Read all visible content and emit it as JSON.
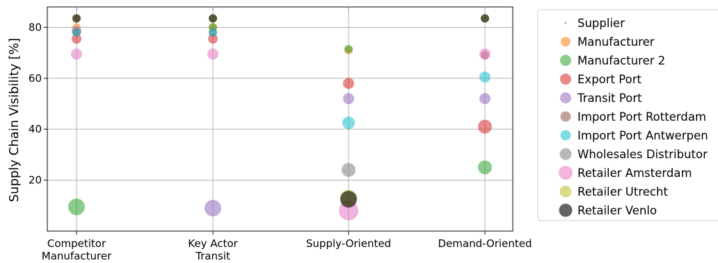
{
  "chart_data": {
    "type": "scatter",
    "title": "",
    "xlabel": "",
    "ylabel": "Supply Chain Visibility [%]",
    "categories": [
      "Competitor\nManufacturer",
      "Key Actor\nTransit",
      "Supply-Oriented",
      "Demand-Oriented"
    ],
    "ylim": [
      0,
      88
    ],
    "yticks": [
      20,
      40,
      60,
      80
    ],
    "grid": true,
    "legend": "right-outside",
    "point_size_note": "marker size varies per point",
    "series": [
      {
        "name": "Supplier",
        "color": "#1f77b4",
        "points": [
          {
            "x": 0,
            "y": 87,
            "size": 1
          },
          {
            "x": 1,
            "y": 87,
            "size": 1
          },
          {
            "x": 2,
            "y": 87,
            "size": 1
          }
        ]
      },
      {
        "name": "Manufacturer",
        "color": "#ff7f0e",
        "points": [
          {
            "x": 0,
            "y": 80,
            "size": 6
          },
          {
            "x": 1,
            "y": 80,
            "size": 6
          },
          {
            "x": 2,
            "y": 71,
            "size": 6
          }
        ]
      },
      {
        "name": "Manufacturer 2",
        "color": "#2ca02c",
        "points": [
          {
            "x": 0,
            "y": 9.5,
            "size": 12
          },
          {
            "x": 1,
            "y": 80,
            "size": 6
          },
          {
            "x": 2,
            "y": 71.5,
            "size": 6
          },
          {
            "x": 3,
            "y": 25,
            "size": 10
          }
        ]
      },
      {
        "name": "Export Port",
        "color": "#d62728",
        "points": [
          {
            "x": 0,
            "y": 75.5,
            "size": 7
          },
          {
            "x": 1,
            "y": 75.5,
            "size": 7
          },
          {
            "x": 2,
            "y": 58,
            "size": 8
          },
          {
            "x": 3,
            "y": 41,
            "size": 10
          }
        ]
      },
      {
        "name": "Transit Port",
        "color": "#9467bd",
        "points": [
          {
            "x": 0,
            "y": 78.5,
            "size": 7
          },
          {
            "x": 1,
            "y": 9,
            "size": 12
          },
          {
            "x": 2,
            "y": 52,
            "size": 8
          },
          {
            "x": 3,
            "y": 52,
            "size": 8
          }
        ]
      },
      {
        "name": "Import Port Rotterdam",
        "color": "#8c564b",
        "points": [
          {
            "x": 0,
            "y": 78,
            "size": 6
          },
          {
            "x": 1,
            "y": 78,
            "size": 6
          },
          {
            "x": 3,
            "y": 69,
            "size": 6
          }
        ]
      },
      {
        "name": "Import Port Antwerpen",
        "color": "#17becf",
        "points": [
          {
            "x": 0,
            "y": 78,
            "size": 6
          },
          {
            "x": 1,
            "y": 78,
            "size": 6
          },
          {
            "x": 2,
            "y": 42.5,
            "size": 9
          },
          {
            "x": 3,
            "y": 60.5,
            "size": 8
          }
        ]
      },
      {
        "name": "Wholesales Distributor",
        "color": "#7f7f7f",
        "points": [
          {
            "x": 2,
            "y": 24,
            "size": 10
          }
        ]
      },
      {
        "name": "Retailer Amsterdam",
        "color": "#e377c2",
        "points": [
          {
            "x": 0,
            "y": 69.5,
            "size": 8
          },
          {
            "x": 1,
            "y": 69.5,
            "size": 8
          },
          {
            "x": 2,
            "y": 8,
            "size": 14
          },
          {
            "x": 3,
            "y": 69.5,
            "size": 8
          }
        ]
      },
      {
        "name": "Retailer Utrecht",
        "color": "#bcbd22",
        "points": [
          {
            "x": 0,
            "y": 83.5,
            "size": 6
          },
          {
            "x": 1,
            "y": 83.5,
            "size": 6
          },
          {
            "x": 2,
            "y": 13,
            "size": 12
          },
          {
            "x": 3,
            "y": 83.5,
            "size": 6
          }
        ]
      },
      {
        "name": "Retailer Venlo",
        "color": "#111111",
        "points": [
          {
            "x": 0,
            "y": 83.5,
            "size": 6
          },
          {
            "x": 1,
            "y": 83.5,
            "size": 6
          },
          {
            "x": 2,
            "y": 12.5,
            "size": 12
          },
          {
            "x": 3,
            "y": 83.5,
            "size": 6
          }
        ]
      }
    ]
  }
}
